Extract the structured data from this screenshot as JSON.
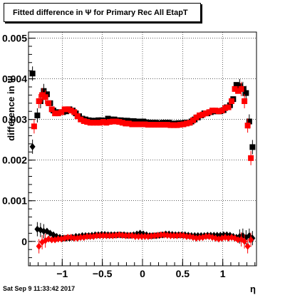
{
  "chart_data": {
    "type": "scatter",
    "title": "Fitted difference in Ψ  for Primary Rec All EtapT",
    "xlabel": "η",
    "ylabel": "difference in Ψ",
    "xlim": [
      -1.42,
      1.42
    ],
    "ylim": [
      -0.0006,
      0.00515
    ],
    "x_ticks": [
      -1,
      -0.5,
      0,
      0.5,
      1
    ],
    "x_tick_labels": [
      "−1",
      "−0.5",
      "0",
      "0.5",
      "1"
    ],
    "y_ticks": [
      0,
      0.001,
      0.002,
      0.003,
      0.004,
      0.005
    ],
    "y_tick_labels": [
      "0",
      "0.001",
      "0.002",
      "0.003",
      "0.004",
      "0.005"
    ],
    "grid": true,
    "colors": {
      "black_series": "#000000",
      "red_series": "#ff0000"
    },
    "series": [
      {
        "marker": "square",
        "color": "#000000",
        "x": [
          -1.37,
          -1.31,
          -1.27,
          -1.23,
          -1.19,
          -1.15,
          -1.11,
          -1.07,
          -1.03,
          -0.99,
          -0.95,
          -0.91,
          -0.87,
          -0.83,
          -0.79,
          -0.75,
          -0.71,
          -0.67,
          -0.63,
          -0.59,
          -0.55,
          -0.51,
          -0.47,
          -0.43,
          -0.39,
          -0.35,
          -0.31,
          -0.27,
          -0.23,
          -0.19,
          -0.15,
          -0.11,
          -0.07,
          -0.03,
          0.01,
          0.05,
          0.09,
          0.13,
          0.17,
          0.21,
          0.25,
          0.29,
          0.33,
          0.37,
          0.41,
          0.45,
          0.49,
          0.53,
          0.57,
          0.61,
          0.65,
          0.69,
          0.73,
          0.77,
          0.81,
          0.85,
          0.89,
          0.93,
          0.97,
          1.01,
          1.05,
          1.09,
          1.13,
          1.17,
          1.21,
          1.25,
          1.29,
          1.33,
          1.37
        ],
        "y": [
          0.00413,
          0.0031,
          0.00345,
          0.0037,
          0.00362,
          0.0034,
          0.00322,
          0.00318,
          0.00318,
          0.00318,
          0.0032,
          0.00325,
          0.00322,
          0.00315,
          0.00308,
          0.00302,
          0.003,
          0.00298,
          0.00297,
          0.00297,
          0.00298,
          0.00298,
          0.00297,
          0.00302,
          0.003,
          0.003,
          0.00298,
          0.00298,
          0.00297,
          0.00297,
          0.00296,
          0.00296,
          0.00295,
          0.00295,
          0.00295,
          0.00293,
          0.00292,
          0.00292,
          0.00292,
          0.0029,
          0.00292,
          0.00292,
          0.00292,
          0.0029,
          0.0029,
          0.00291,
          0.00291,
          0.00292,
          0.00292,
          0.00295,
          0.003,
          0.00305,
          0.0031,
          0.00315,
          0.00315,
          0.00318,
          0.0032,
          0.0032,
          0.0032,
          0.00323,
          0.0033,
          0.00335,
          0.0035,
          0.00385,
          0.00382,
          0.00375,
          0.00365,
          0.00295,
          0.00232
        ]
      },
      {
        "marker": "square",
        "color": "#ff0000",
        "x": [
          -1.35,
          -1.29,
          -1.25,
          -1.21,
          -1.17,
          -1.13,
          -1.09,
          -1.05,
          -1.01,
          -0.97,
          -0.93,
          -0.89,
          -0.85,
          -0.81,
          -0.77,
          -0.73,
          -0.69,
          -0.65,
          -0.61,
          -0.57,
          -0.53,
          -0.49,
          -0.45,
          -0.41,
          -0.37,
          -0.33,
          -0.29,
          -0.25,
          -0.21,
          -0.17,
          -0.13,
          -0.09,
          -0.05,
          -0.01,
          0.03,
          0.07,
          0.11,
          0.15,
          0.19,
          0.23,
          0.27,
          0.31,
          0.35,
          0.39,
          0.43,
          0.47,
          0.51,
          0.55,
          0.59,
          0.63,
          0.67,
          0.71,
          0.75,
          0.79,
          0.83,
          0.87,
          0.91,
          0.95,
          0.99,
          1.03,
          1.07,
          1.11,
          1.15,
          1.19,
          1.23,
          1.27,
          1.31,
          1.35
        ],
        "y": [
          0.00283,
          0.00345,
          0.0036,
          0.00355,
          0.0034,
          0.00325,
          0.00315,
          0.00315,
          0.00318,
          0.00325,
          0.00325,
          0.00322,
          0.00318,
          0.00308,
          0.003,
          0.00296,
          0.00294,
          0.00292,
          0.00292,
          0.00292,
          0.00292,
          0.00294,
          0.00292,
          0.00294,
          0.00295,
          0.00295,
          0.00294,
          0.00292,
          0.0029,
          0.0029,
          0.00288,
          0.00288,
          0.00288,
          0.00288,
          0.00288,
          0.00287,
          0.00287,
          0.00287,
          0.00287,
          0.00287,
          0.00287,
          0.00287,
          0.00286,
          0.00286,
          0.00286,
          0.00287,
          0.00288,
          0.0029,
          0.00292,
          0.00298,
          0.00305,
          0.0031,
          0.00312,
          0.00315,
          0.00318,
          0.00322,
          0.00322,
          0.0032,
          0.00322,
          0.00328,
          0.0033,
          0.00345,
          0.00375,
          0.0037,
          0.00375,
          0.00345,
          0.00285,
          0.00205
        ]
      },
      {
        "marker": "diamond",
        "color": "#000000",
        "x": [
          -1.37,
          -1.31,
          -1.27,
          -1.23,
          -1.19,
          -1.15,
          -1.11,
          -1.07,
          -1.03,
          -0.99,
          -0.95,
          -0.91,
          -0.87,
          -0.83,
          -0.79,
          -0.75,
          -0.71,
          -0.67,
          -0.63,
          -0.59,
          -0.55,
          -0.51,
          -0.47,
          -0.43,
          -0.39,
          -0.35,
          -0.31,
          -0.27,
          -0.23,
          -0.19,
          -0.15,
          -0.11,
          -0.07,
          -0.03,
          0.01,
          0.05,
          0.09,
          0.13,
          0.17,
          0.21,
          0.25,
          0.29,
          0.33,
          0.37,
          0.41,
          0.45,
          0.49,
          0.53,
          0.57,
          0.61,
          0.65,
          0.69,
          0.73,
          0.77,
          0.81,
          0.85,
          0.89,
          0.93,
          0.97,
          1.01,
          1.05,
          1.09,
          1.13,
          1.17,
          1.21,
          1.25,
          1.29,
          1.33,
          1.37
        ],
        "y": [
          0.00233,
          0.0003,
          0.00028,
          0.00025,
          0.00025,
          0.0002,
          0.00016,
          0.00012,
          0.0001,
          8e-05,
          8e-05,
          8e-05,
          0.0001,
          0.00012,
          0.00012,
          0.00014,
          0.00014,
          0.00014,
          0.00015,
          0.00016,
          0.00016,
          0.00017,
          0.00017,
          0.00016,
          0.00016,
          0.00016,
          0.00016,
          0.00016,
          0.00016,
          0.00015,
          0.00015,
          0.00016,
          0.00018,
          0.0002,
          0.00018,
          0.00016,
          0.00014,
          0.00014,
          0.00014,
          0.00015,
          0.00016,
          0.00018,
          0.00018,
          0.00017,
          0.00016,
          0.00016,
          0.00016,
          0.00016,
          0.00015,
          0.00014,
          0.00014,
          0.00014,
          0.00014,
          0.00014,
          0.00015,
          0.00015,
          0.00015,
          0.00015,
          0.00015,
          0.00016,
          0.00016,
          0.00015,
          0.00012,
          0.0001,
          0.00012,
          0.00014,
          0.0001,
          0.00014,
          8e-05
        ]
      },
      {
        "marker": "diamond",
        "color": "#ff0000",
        "x": [
          -1.29,
          -1.25,
          -1.21,
          -1.17,
          -1.13,
          -1.09,
          -1.05,
          -1.01,
          -0.97,
          -0.93,
          -0.89,
          -0.85,
          -0.81,
          -0.77,
          -0.73,
          -0.69,
          -0.65,
          -0.61,
          -0.57,
          -0.53,
          -0.49,
          -0.45,
          -0.41,
          -0.37,
          -0.33,
          -0.29,
          -0.25,
          -0.21,
          -0.17,
          -0.13,
          -0.09,
          -0.05,
          -0.01,
          0.03,
          0.07,
          0.11,
          0.15,
          0.19,
          0.23,
          0.27,
          0.31,
          0.35,
          0.39,
          0.43,
          0.47,
          0.51,
          0.55,
          0.59,
          0.63,
          0.67,
          0.71,
          0.75,
          0.79,
          0.83,
          0.87,
          0.91,
          0.95,
          0.99,
          1.03,
          1.07,
          1.11,
          1.15,
          1.19,
          1.23,
          1.27,
          1.31,
          1.35
        ],
        "y": [
          -0.00012,
          -2e-05,
          2e-05,
          6e-05,
          4e-05,
          4e-05,
          6e-05,
          6e-05,
          8e-05,
          0.0001,
          0.0001,
          8e-05,
          8e-05,
          0.0001,
          0.0001,
          0.00012,
          0.00012,
          0.00012,
          0.00014,
          0.00014,
          0.00014,
          0.00014,
          0.00014,
          0.00014,
          0.00015,
          0.00016,
          0.00015,
          0.00014,
          0.00014,
          0.00014,
          0.00012,
          0.00012,
          0.00012,
          0.00012,
          0.00012,
          0.00013,
          0.00014,
          0.00015,
          0.00016,
          0.00016,
          0.00015,
          0.00014,
          0.00014,
          0.00014,
          0.00015,
          0.00014,
          0.00012,
          0.00012,
          0.0001,
          8e-05,
          9e-05,
          0.0001,
          0.00012,
          0.00012,
          0.0001,
          8e-05,
          6e-05,
          8e-05,
          0.0001,
          8e-05,
          0.0001,
          8e-05,
          4e-05,
          5e-05,
          0.0,
          -0.00012,
          4e-05
        ]
      }
    ]
  },
  "footer": {
    "date": "Sat Sep  9 11:33:42 2017"
  }
}
